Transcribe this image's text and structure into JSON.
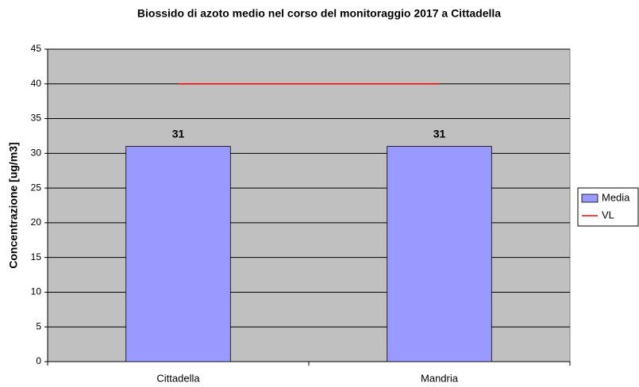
{
  "chart_data": {
    "type": "bar",
    "title": "Biossido di azoto medio nel corso del monitoraggio 2017 a Cittadella",
    "y_label": "Concentrazione [ug/m3]",
    "categories": [
      "Cittadella",
      "Mandria"
    ],
    "series": [
      {
        "name": "Media",
        "type": "bar",
        "color": "#9999ff",
        "values": [
          31,
          31
        ]
      },
      {
        "name": "VL",
        "type": "line",
        "color": "#ff0000",
        "values": [
          40,
          40
        ]
      }
    ],
    "ylim": [
      0,
      45
    ],
    "yticks": [
      0,
      5,
      10,
      15,
      20,
      25,
      30,
      35,
      40,
      45
    ],
    "grid": true,
    "legend": "right"
  }
}
